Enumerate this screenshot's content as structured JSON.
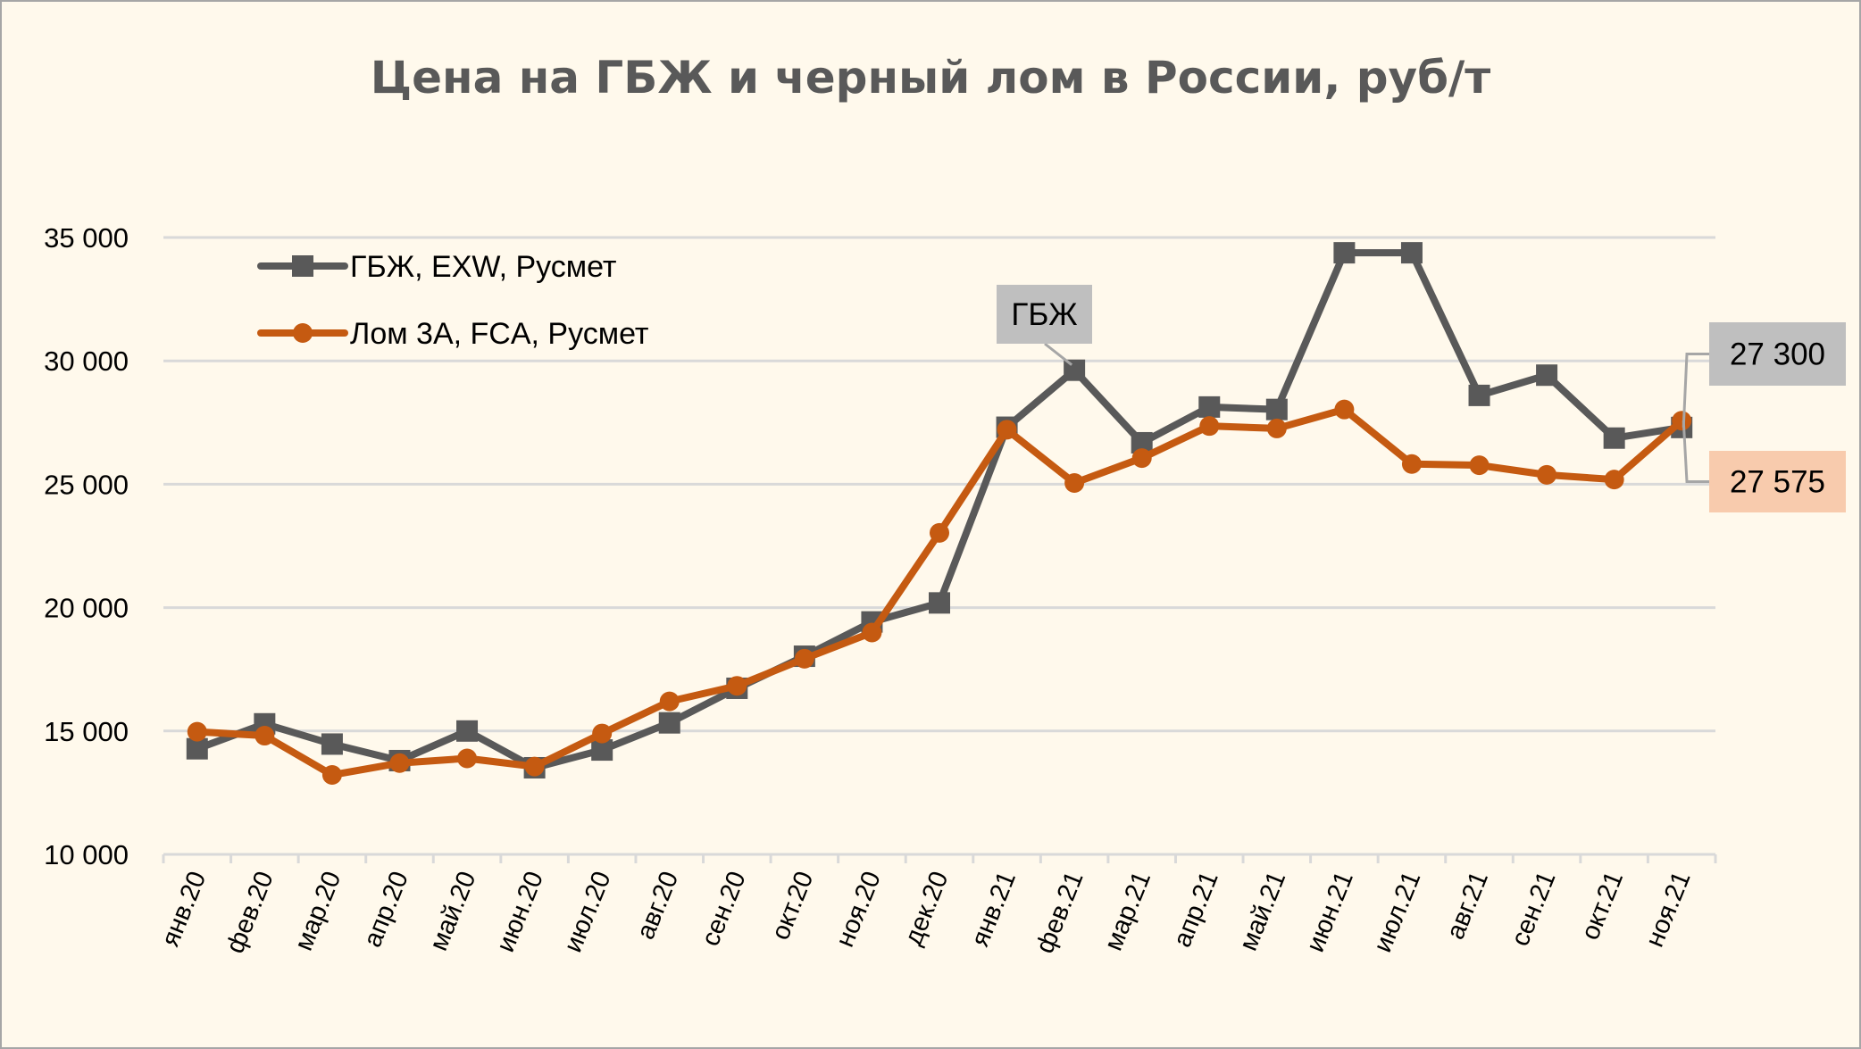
{
  "chart_data": {
    "type": "line",
    "title": "Цена на ГБЖ и черный лом в России, руб/т",
    "xlabel": "",
    "ylabel": "",
    "ylim": [
      10000,
      35000
    ],
    "yticks": [
      10000,
      15000,
      20000,
      25000,
      30000,
      35000
    ],
    "ytick_labels": [
      "10 000",
      "15 000",
      "20 000",
      "25 000",
      "30 000",
      "35 000"
    ],
    "grid": true,
    "legend_position": "top-left",
    "categories": [
      "янв.20",
      "фев.20",
      "мар.20",
      "апр.20",
      "май.20",
      "июн.20",
      "июл.20",
      "авг.20",
      "сен.20",
      "окт.20",
      "ноя.20",
      "дек.20",
      "янв.21",
      "фев.21",
      "мар.21",
      "апр.21",
      "май.21",
      "июн.21",
      "июл.21",
      "авг.21",
      "сен.21",
      "окт.21",
      "ноя.21"
    ],
    "series": [
      {
        "name": "ГБЖ, EXW, Русмет",
        "color": "#595959",
        "marker": "square",
        "values": [
          14280,
          15290,
          14470,
          13800,
          15000,
          13510,
          14230,
          15330,
          16730,
          18030,
          19420,
          20190,
          27310,
          29620,
          26680,
          28130,
          28030,
          34380,
          34380,
          28600,
          29420,
          26870,
          27300
        ]
      },
      {
        "name": "Лом 3А, FCA, Русмет",
        "color": "#C55A11",
        "marker": "circle",
        "values": [
          14970,
          14810,
          13220,
          13700,
          13890,
          13560,
          14900,
          16200,
          16830,
          17930,
          18990,
          23030,
          27210,
          25050,
          26060,
          27360,
          27260,
          28030,
          25820,
          25770,
          25380,
          25190,
          27575
        ]
      }
    ],
    "annotations": [
      {
        "text": "ГБЖ",
        "series": 0,
        "category": "фев.21",
        "fill": "#BFBFBF"
      },
      {
        "text": "27 300",
        "series": 0,
        "category": "ноя.21",
        "fill": "#BFBFBF"
      },
      {
        "text": "27 575",
        "series": 1,
        "category": "ноя.21",
        "fill": "#F8CBAD"
      }
    ]
  }
}
